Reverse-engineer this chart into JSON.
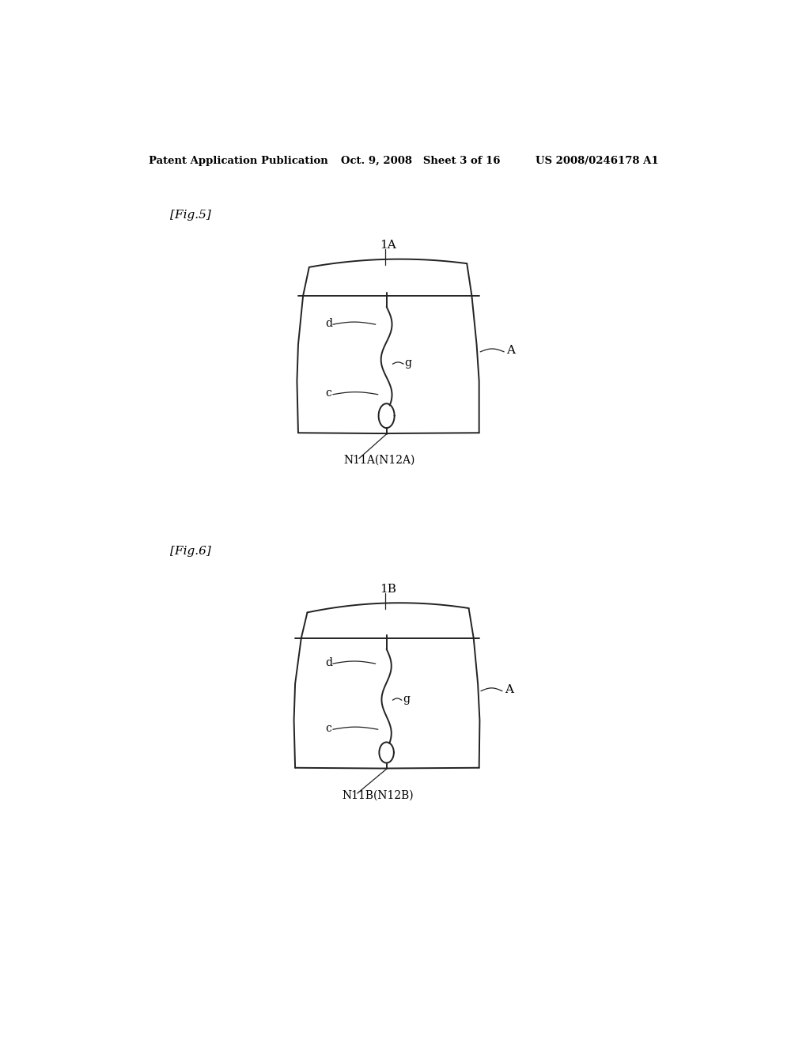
{
  "bg_color": "#ffffff",
  "header_left": "Patent Application Publication",
  "header_mid": "Oct. 9, 2008   Sheet 3 of 16",
  "header_right": "US 2008/0246178 A1",
  "fig5_label": "[Fig.5]",
  "fig6_label": "[Fig.6]",
  "fig5_part_label": "1A",
  "fig6_part_label": "1B",
  "fig5_bottom_label": "N11A(N12A)",
  "fig6_bottom_label": "N11B(N12B)",
  "label_A": "A",
  "label_d": "d",
  "label_c": "c",
  "label_g": "g",
  "lc": "#222222",
  "lw": 1.4
}
